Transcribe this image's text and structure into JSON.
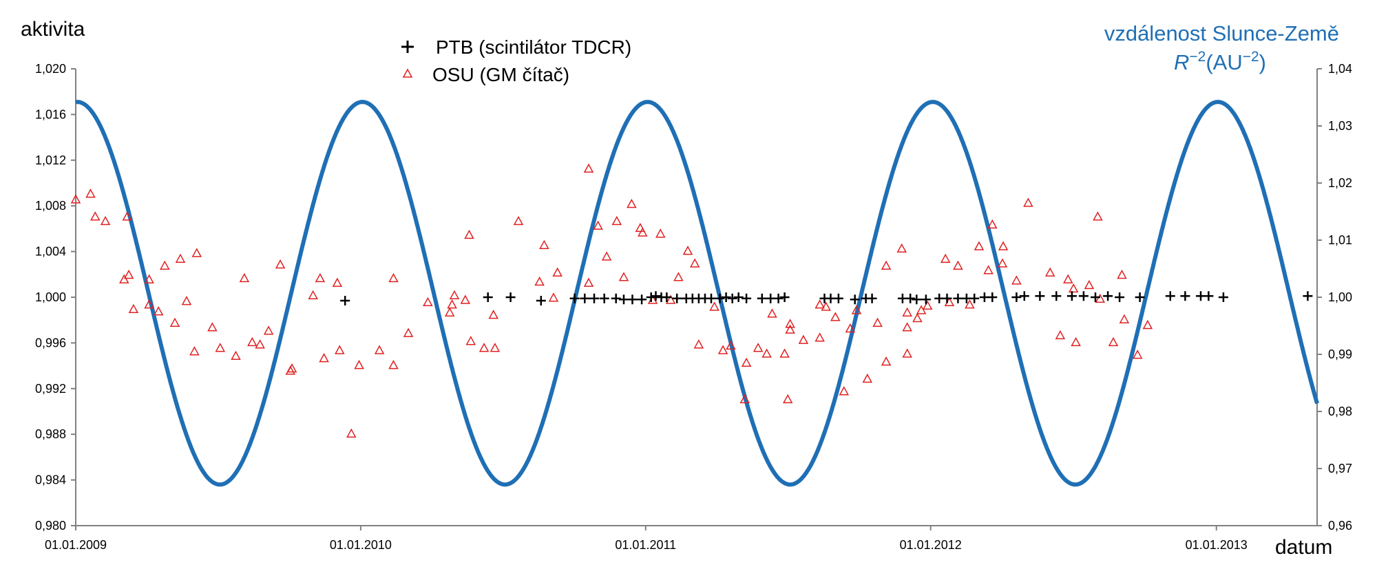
{
  "chart_data": {
    "type": "scatter",
    "title": "",
    "xlabel": "datum",
    "ylabel": "aktivita",
    "y2label_line1": "vzdálenost Slunce-Země",
    "y2label_line2_parts": {
      "R": "R",
      "exp1": "−2",
      "unit": "(AU",
      "exp2": "−2",
      "close": ")"
    },
    "xlim": [
      "2009-01-01",
      "2013-05-10"
    ],
    "ylim": [
      0.98,
      1.02
    ],
    "y2lim": [
      0.96,
      1.04
    ],
    "x_ticks": [
      "01.01.2009",
      "01.01.2010",
      "01.01.2011",
      "01.01.2012",
      "01.01.2013"
    ],
    "y_ticks": [
      "1,020",
      "1,016",
      "1,012",
      "1,008",
      "1,004",
      "1,000",
      "0,996",
      "0,992",
      "0,988",
      "0,984",
      "0,980"
    ],
    "y2_ticks": [
      "1,04",
      "1,03",
      "1,02",
      "1,01",
      "1,00",
      "0,99",
      "0,98",
      "0,97",
      "0,96"
    ],
    "grid": false,
    "legend_position": "top-center",
    "colors": {
      "curve": "#1f6fb5",
      "osu": "#e02020",
      "ptb": "#000000",
      "right_title": "#1f6fb5"
    },
    "series": [
      {
        "name": "PTB (scintilátor TDCR)",
        "marker": "plus",
        "points": [
          [
            "2009-12-12",
            0.9997
          ],
          [
            "2010-06-13",
            1.0
          ],
          [
            "2010-07-12",
            1.0
          ],
          [
            "2010-08-20",
            0.9997
          ],
          [
            "2010-10-02",
            0.9999
          ],
          [
            "2010-10-15",
            0.9999
          ],
          [
            "2010-10-27",
            0.9999
          ],
          [
            "2010-11-09",
            0.9999
          ],
          [
            "2010-11-24",
            0.9999
          ],
          [
            "2010-12-04",
            0.9998
          ],
          [
            "2010-12-15",
            0.9998
          ],
          [
            "2010-12-27",
            0.9998
          ],
          [
            "2011-01-08",
            1.0
          ],
          [
            "2011-01-14",
            1.0001
          ],
          [
            "2011-01-21",
            1.0
          ],
          [
            "2011-01-28",
            1.0
          ],
          [
            "2011-02-10",
            0.9999
          ],
          [
            "2011-02-22",
            0.9999
          ],
          [
            "2011-03-02",
            0.9999
          ],
          [
            "2011-03-10",
            0.9999
          ],
          [
            "2011-03-18",
            0.9999
          ],
          [
            "2011-03-26",
            0.9999
          ],
          [
            "2011-04-06",
            0.9999
          ],
          [
            "2011-04-14",
            1.0
          ],
          [
            "2011-04-22",
            0.9999
          ],
          [
            "2011-04-30",
            1.0
          ],
          [
            "2011-05-10",
            0.9999
          ],
          [
            "2011-05-30",
            0.9999
          ],
          [
            "2011-06-10",
            0.9999
          ],
          [
            "2011-06-20",
            0.9999
          ],
          [
            "2011-06-28",
            1.0
          ],
          [
            "2011-08-18",
            0.9999
          ],
          [
            "2011-08-26",
            0.9999
          ],
          [
            "2011-09-05",
            0.9999
          ],
          [
            "2011-09-26",
            0.9998
          ],
          [
            "2011-10-10",
            0.9999
          ],
          [
            "2011-10-18",
            0.9999
          ],
          [
            "2011-11-26",
            0.9999
          ],
          [
            "2011-12-06",
            0.9999
          ],
          [
            "2011-12-14",
            0.9998
          ],
          [
            "2011-12-26",
            0.9998
          ],
          [
            "2012-01-12",
            0.9999
          ],
          [
            "2012-01-22",
            0.9999
          ],
          [
            "2012-02-05",
            0.9999
          ],
          [
            "2012-02-16",
            0.9999
          ],
          [
            "2012-02-26",
            0.9999
          ],
          [
            "2012-03-10",
            1.0
          ],
          [
            "2012-03-20",
            1.0
          ],
          [
            "2012-04-20",
            1.0
          ],
          [
            "2012-04-30",
            1.0001
          ],
          [
            "2012-05-20",
            1.0001
          ],
          [
            "2012-06-10",
            1.0001
          ],
          [
            "2012-06-30",
            1.0001
          ],
          [
            "2012-07-15",
            1.0001
          ],
          [
            "2012-07-30",
            1.0
          ],
          [
            "2012-08-15",
            1.0001
          ],
          [
            "2012-08-30",
            1.0
          ],
          [
            "2012-09-25",
            1.0
          ],
          [
            "2012-11-03",
            1.0001
          ],
          [
            "2012-11-22",
            1.0001
          ],
          [
            "2012-12-12",
            1.0001
          ],
          [
            "2012-12-22",
            1.0001
          ],
          [
            "2013-01-10",
            1.0
          ],
          [
            "2013-04-28",
            1.0001
          ]
        ]
      },
      {
        "name": "OSU (GM čítač)",
        "marker": "triangle",
        "points": [
          [
            "2009-01-01",
            1.0085
          ],
          [
            "2009-01-20",
            1.009
          ],
          [
            "2009-01-26",
            1.007
          ],
          [
            "2009-02-08",
            1.0066
          ],
          [
            "2009-03-08",
            1.007
          ],
          [
            "2009-03-04",
            1.0015
          ],
          [
            "2009-03-10",
            1.0019
          ],
          [
            "2009-03-16",
            0.9989
          ],
          [
            "2009-04-05",
            1.0015
          ],
          [
            "2009-04-05",
            0.9993
          ],
          [
            "2009-04-17",
            0.9987
          ],
          [
            "2009-04-25",
            1.0027
          ],
          [
            "2009-05-08",
            0.9977
          ],
          [
            "2009-05-15",
            1.0033
          ],
          [
            "2009-05-23",
            0.9996
          ],
          [
            "2009-06-05",
            1.0038
          ],
          [
            "2009-06-02",
            0.9952
          ],
          [
            "2009-06-25",
            0.9973
          ],
          [
            "2009-07-05",
            0.9955
          ],
          [
            "2009-07-25",
            0.9948
          ],
          [
            "2009-08-05",
            1.0016
          ],
          [
            "2009-08-15",
            0.996
          ],
          [
            "2009-08-25",
            0.9958
          ],
          [
            "2009-09-05",
            0.997
          ],
          [
            "2009-09-20",
            1.0028
          ],
          [
            "2009-10-05",
            0.9937
          ],
          [
            "2009-10-03",
            0.9935
          ],
          [
            "2009-11-01",
            1.0001
          ],
          [
            "2009-11-10",
            1.0016
          ],
          [
            "2009-11-15",
            0.9946
          ],
          [
            "2009-12-02",
            1.0012
          ],
          [
            "2009-12-05",
            0.9953
          ],
          [
            "2009-12-20",
            0.988
          ],
          [
            "2009-12-30",
            0.994
          ],
          [
            "2010-01-25",
            0.9953
          ],
          [
            "2010-02-12",
            1.0016
          ],
          [
            "2010-02-12",
            0.994
          ],
          [
            "2010-03-03",
            0.9968
          ],
          [
            "2010-03-28",
            0.9995
          ],
          [
            "2010-04-25",
            0.9986
          ],
          [
            "2010-04-28",
            0.9993
          ],
          [
            "2010-05-01",
            1.0001
          ],
          [
            "2010-05-15",
            0.9997
          ],
          [
            "2010-05-20",
            1.0054
          ],
          [
            "2010-05-22",
            0.9961
          ],
          [
            "2010-06-08",
            0.9955
          ],
          [
            "2010-06-20",
            0.9984
          ],
          [
            "2010-06-22",
            0.9955
          ],
          [
            "2010-07-22",
            1.0066
          ],
          [
            "2010-08-24",
            1.0045
          ],
          [
            "2010-08-18",
            1.0013
          ],
          [
            "2010-09-05",
            0.9999
          ],
          [
            "2010-09-10",
            1.0021
          ],
          [
            "2010-10-20",
            1.0112
          ],
          [
            "2010-10-20",
            1.0012
          ],
          [
            "2010-11-01",
            1.0062
          ],
          [
            "2010-11-12",
            1.0035
          ],
          [
            "2010-11-25",
            1.0066
          ],
          [
            "2010-12-04",
            1.0017
          ],
          [
            "2010-12-14",
            1.0081
          ],
          [
            "2010-12-25",
            1.006
          ],
          [
            "2010-12-28",
            1.0056
          ],
          [
            "2011-01-10",
            0.9997
          ],
          [
            "2011-01-20",
            1.0055
          ],
          [
            "2011-02-02",
            0.9997
          ],
          [
            "2011-02-12",
            1.0017
          ],
          [
            "2011-02-24",
            1.004
          ],
          [
            "2011-03-05",
            1.0029
          ],
          [
            "2011-03-10",
            0.9958
          ],
          [
            "2011-03-30",
            0.9991
          ],
          [
            "2011-04-10",
            0.9953
          ],
          [
            "2011-04-20",
            0.9957
          ],
          [
            "2011-05-08",
            0.991
          ],
          [
            "2011-05-10",
            0.9942
          ],
          [
            "2011-05-25",
            0.9955
          ],
          [
            "2011-06-05",
            0.995
          ],
          [
            "2011-06-12",
            0.9985
          ],
          [
            "2011-06-28",
            0.995
          ],
          [
            "2011-07-02",
            0.991
          ],
          [
            "2011-07-05",
            0.9971
          ],
          [
            "2011-07-05",
            0.9976
          ],
          [
            "2011-07-22",
            0.9962
          ],
          [
            "2011-08-12",
            0.9964
          ],
          [
            "2011-08-12",
            0.9993
          ],
          [
            "2011-08-20",
            0.9991
          ],
          [
            "2011-09-01",
            0.9982
          ],
          [
            "2011-09-12",
            0.9917
          ],
          [
            "2011-09-20",
            0.9972
          ],
          [
            "2011-09-28",
            0.9988
          ],
          [
            "2011-10-12",
            0.9928
          ],
          [
            "2011-10-25",
            0.9977
          ],
          [
            "2011-11-05",
            0.9943
          ],
          [
            "2011-11-05",
            1.0027
          ],
          [
            "2011-11-25",
            1.0042
          ],
          [
            "2011-12-02",
            0.995
          ],
          [
            "2011-12-02",
            0.9973
          ],
          [
            "2011-12-02",
            0.9986
          ],
          [
            "2011-12-15",
            0.9981
          ],
          [
            "2011-12-20",
            0.9988
          ],
          [
            "2011-12-28",
            0.9992
          ],
          [
            "2012-01-20",
            1.0033
          ],
          [
            "2012-01-25",
            0.9995
          ],
          [
            "2012-02-05",
            1.0027
          ],
          [
            "2012-02-20",
            0.9993
          ],
          [
            "2012-03-03",
            1.0044
          ],
          [
            "2012-03-15",
            1.0023
          ],
          [
            "2012-03-20",
            1.0063
          ],
          [
            "2012-04-02",
            1.0029
          ],
          [
            "2012-04-03",
            1.0044
          ],
          [
            "2012-04-20",
            1.0014
          ],
          [
            "2012-05-05",
            1.0082
          ],
          [
            "2012-06-02",
            1.0021
          ],
          [
            "2012-06-15",
            0.9966
          ],
          [
            "2012-06-25",
            1.0015
          ],
          [
            "2012-07-02",
            1.0007
          ],
          [
            "2012-07-05",
            0.996
          ],
          [
            "2012-07-22",
            1.001
          ],
          [
            "2012-08-02",
            1.007
          ],
          [
            "2012-08-05",
            0.9998
          ],
          [
            "2012-08-22",
            0.996
          ],
          [
            "2012-09-02",
            1.0019
          ],
          [
            "2012-09-05",
            0.998
          ],
          [
            "2012-09-22",
            0.9949
          ],
          [
            "2012-10-05",
            0.9975
          ]
        ]
      }
    ],
    "curve": {
      "name": "vzdálenost Slunce-Země",
      "axis": "y2",
      "max": 1.0342,
      "min": 0.9672,
      "max_date": "2009-01-03",
      "period_days": 365.25
    }
  }
}
